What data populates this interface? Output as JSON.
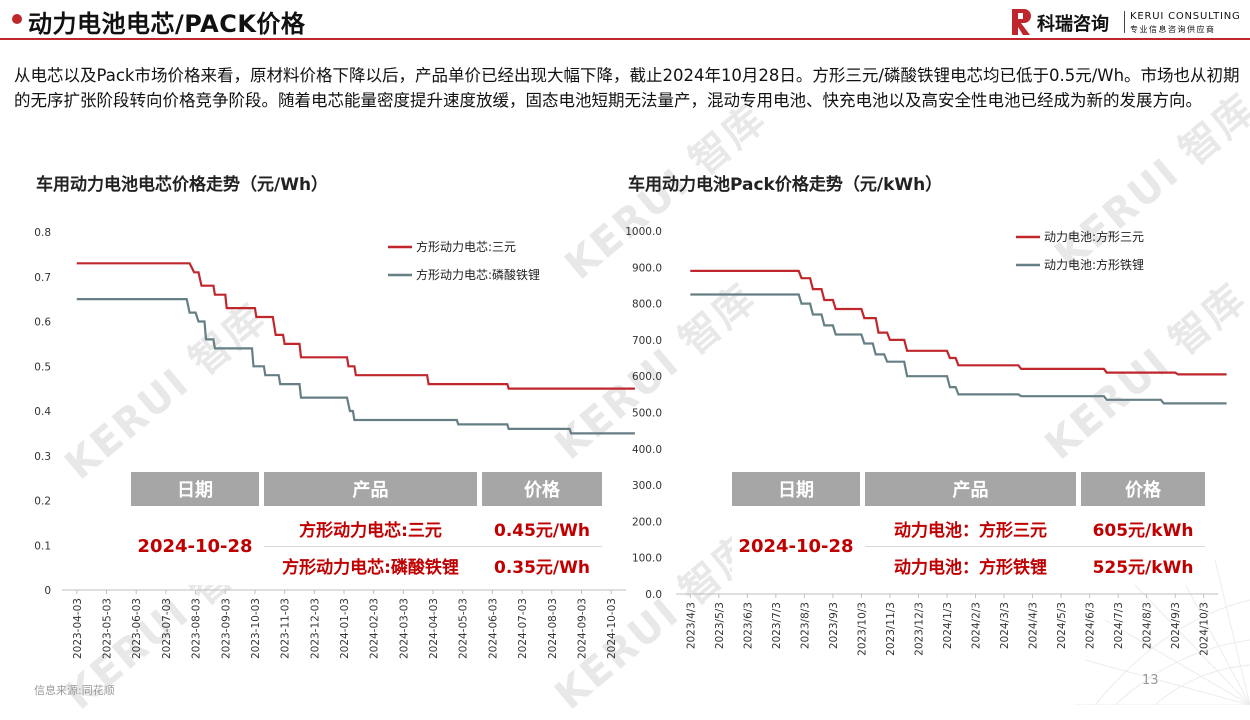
{
  "header": {
    "title": "动力电池电芯/PACK价格",
    "logo_cn": "科瑞咨询",
    "logo_en": "KERUI CONSULTING",
    "logo_sub": "专业信息咨询供应商"
  },
  "intro": "从电芯以及Pack市场价格来看，原材料价格下降以后，产品单价已经出现大幅下降，截止2024年10月28日。方形三元/磷酸铁锂电芯均已低于0.5元/Wh。市场也从初期的无序扩张阶段转向价格竞争阶段。随着电芯能量密度提升速度放缓，固态电池短期无法量产，混动专用电池、快充电池以及高安全性电池已经成为新的发展方向。",
  "watermark": "KERUI 智库",
  "footer": {
    "source": "信息来源:同花顺",
    "page": "13"
  },
  "colors": {
    "accent": "#c0272d",
    "series1": "#c0272d",
    "series2": "#667f85",
    "table_header": "#a6a6a6",
    "table_value": "#c00000"
  },
  "chart_data": [
    {
      "type": "line",
      "title": "车用动力电池电芯价格走势（元/Wh）",
      "x_ticks": [
        "2023-04-03",
        "2023-05-03",
        "2023-06-03",
        "2023-07-03",
        "2023-08-03",
        "2023-09-03",
        "2023-10-03",
        "2023-11-03",
        "2023-12-03",
        "2024-01-03",
        "2024-02-03",
        "2024-03-03",
        "2024-04-03",
        "2024-05-03",
        "2024-06-03",
        "2024-07-03",
        "2024-08-03",
        "2024-09-03",
        "2024-10-03"
      ],
      "y_ticks": [
        "0",
        "0.1",
        "0.2",
        "0.3",
        "0.4",
        "0.5",
        "0.6",
        "0.7",
        "0.8"
      ],
      "ylim": [
        0,
        0.8
      ],
      "legend_position": "top-right",
      "series": [
        {
          "name": "方形动力电芯:三元",
          "color": "#c0272d",
          "points": [
            [
              0,
              0.73
            ],
            [
              3.8,
              0.73
            ],
            [
              3.95,
              0.71
            ],
            [
              4.1,
              0.71
            ],
            [
              4.2,
              0.68
            ],
            [
              4.6,
              0.68
            ],
            [
              4.65,
              0.66
            ],
            [
              5.0,
              0.66
            ],
            [
              5.05,
              0.63
            ],
            [
              6.0,
              0.63
            ],
            [
              6.05,
              0.61
            ],
            [
              6.6,
              0.61
            ],
            [
              6.7,
              0.57
            ],
            [
              6.95,
              0.57
            ],
            [
              7.0,
              0.55
            ],
            [
              7.5,
              0.55
            ],
            [
              7.55,
              0.52
            ],
            [
              9.1,
              0.52
            ],
            [
              9.15,
              0.5
            ],
            [
              9.35,
              0.5
            ],
            [
              9.4,
              0.48
            ],
            [
              11.8,
              0.48
            ],
            [
              11.85,
              0.46
            ],
            [
              14.5,
              0.46
            ],
            [
              14.55,
              0.45
            ],
            [
              18.8,
              0.45
            ]
          ]
        },
        {
          "name": "方形动力电芯:磷酸铁锂",
          "color": "#667f85",
          "points": [
            [
              0,
              0.65
            ],
            [
              3.7,
              0.65
            ],
            [
              3.8,
              0.62
            ],
            [
              4.0,
              0.62
            ],
            [
              4.1,
              0.6
            ],
            [
              4.3,
              0.6
            ],
            [
              4.35,
              0.56
            ],
            [
              4.6,
              0.56
            ],
            [
              4.65,
              0.54
            ],
            [
              5.9,
              0.54
            ],
            [
              5.95,
              0.5
            ],
            [
              6.3,
              0.5
            ],
            [
              6.35,
              0.48
            ],
            [
              6.8,
              0.48
            ],
            [
              6.85,
              0.46
            ],
            [
              7.5,
              0.46
            ],
            [
              7.55,
              0.43
            ],
            [
              9.1,
              0.43
            ],
            [
              9.2,
              0.4
            ],
            [
              9.3,
              0.4
            ],
            [
              9.35,
              0.38
            ],
            [
              12.8,
              0.38
            ],
            [
              12.85,
              0.37
            ],
            [
              14.5,
              0.37
            ],
            [
              14.55,
              0.36
            ],
            [
              16.6,
              0.36
            ],
            [
              16.65,
              0.35
            ],
            [
              18.8,
              0.35
            ]
          ]
        }
      ],
      "table": {
        "headers": [
          "日期",
          "产品",
          "价格"
        ],
        "date": "2024-10-28",
        "rows": [
          {
            "product": "方形动力电芯:三元",
            "price": "0.45元/Wh"
          },
          {
            "product": "方形动力电芯:磷酸铁锂",
            "price": "0.35元/Wh"
          }
        ]
      }
    },
    {
      "type": "line",
      "title": "车用动力电池Pack价格走势（元/kWh）",
      "x_ticks": [
        "2023/4/3",
        "2023/5/3",
        "2023/6/3",
        "2023/7/3",
        "2023/8/3",
        "2023/9/3",
        "2023/10/3",
        "2023/11/3",
        "2023/12/3",
        "2024/1/3",
        "2024/2/3",
        "2024/3/3",
        "2024/4/3",
        "2024/5/3",
        "2024/6/3",
        "2024/7/3",
        "2024/8/3",
        "2024/9/3",
        "2024/10/3"
      ],
      "y_ticks": [
        "0.0",
        "100.0",
        "200.0",
        "300.0",
        "400.0",
        "500.0",
        "600.0",
        "700.0",
        "800.0",
        "900.0",
        "1000.0"
      ],
      "ylim": [
        0,
        1000
      ],
      "legend_position": "top-right",
      "series": [
        {
          "name": "动力电池:方形三元",
          "color": "#c0272d",
          "points": [
            [
              0,
              890
            ],
            [
              3.8,
              890
            ],
            [
              3.9,
              870
            ],
            [
              4.2,
              870
            ],
            [
              4.3,
              840
            ],
            [
              4.6,
              840
            ],
            [
              4.7,
              810
            ],
            [
              5.0,
              810
            ],
            [
              5.1,
              785
            ],
            [
              6.0,
              785
            ],
            [
              6.1,
              760
            ],
            [
              6.5,
              760
            ],
            [
              6.6,
              720
            ],
            [
              6.9,
              720
            ],
            [
              7.0,
              700
            ],
            [
              7.5,
              700
            ],
            [
              7.6,
              670
            ],
            [
              9.0,
              670
            ],
            [
              9.1,
              650
            ],
            [
              9.3,
              650
            ],
            [
              9.4,
              630
            ],
            [
              11.5,
              630
            ],
            [
              11.6,
              620
            ],
            [
              14.5,
              620
            ],
            [
              14.6,
              610
            ],
            [
              17.0,
              610
            ],
            [
              17.1,
              605
            ],
            [
              18.8,
              605
            ]
          ]
        },
        {
          "name": "动力电池:方形铁锂",
          "color": "#667f85",
          "points": [
            [
              0,
              825
            ],
            [
              3.8,
              825
            ],
            [
              3.9,
              800
            ],
            [
              4.2,
              800
            ],
            [
              4.3,
              770
            ],
            [
              4.6,
              770
            ],
            [
              4.7,
              740
            ],
            [
              5.0,
              740
            ],
            [
              5.1,
              715
            ],
            [
              6.0,
              715
            ],
            [
              6.1,
              690
            ],
            [
              6.4,
              690
            ],
            [
              6.5,
              660
            ],
            [
              6.8,
              660
            ],
            [
              6.9,
              640
            ],
            [
              7.5,
              640
            ],
            [
              7.6,
              600
            ],
            [
              9.0,
              600
            ],
            [
              9.1,
              570
            ],
            [
              9.3,
              570
            ],
            [
              9.4,
              550
            ],
            [
              11.5,
              550
            ],
            [
              11.6,
              545
            ],
            [
              14.5,
              545
            ],
            [
              14.6,
              535
            ],
            [
              16.5,
              535
            ],
            [
              16.6,
              525
            ],
            [
              18.8,
              525
            ]
          ]
        }
      ],
      "table": {
        "headers": [
          "日期",
          "产品",
          "价格"
        ],
        "date": "2024-10-28",
        "rows": [
          {
            "product": "动力电池：方形三元",
            "price": "605元/kWh"
          },
          {
            "product": "动力电池：方形铁锂",
            "price": "525元/kWh"
          }
        ]
      }
    }
  ]
}
